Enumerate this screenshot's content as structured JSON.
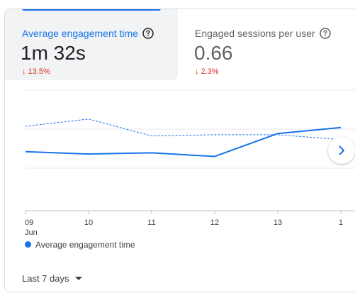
{
  "metrics": [
    {
      "label": "Average engagement time",
      "value": "1m 32s",
      "change": "13.5%",
      "direction": "down",
      "icon": "help-circle-icon",
      "active": true
    },
    {
      "label": "Engaged sessions per user",
      "value": "0.66",
      "change": "2.3%",
      "direction": "down",
      "icon": "help-circle-icon",
      "active": false
    }
  ],
  "chart_data": {
    "type": "line",
    "x_ticks": [
      "09",
      "10",
      "11",
      "12",
      "13",
      "1"
    ],
    "x_sublabel": "Jun",
    "series": [
      {
        "name": "Average engagement time",
        "style": "solid",
        "color": "#1a73e8",
        "values": [
          0.49,
          0.47,
          0.48,
          0.45,
          0.64,
          0.69
        ]
      },
      {
        "style": "dashed",
        "color": "#1a73e8",
        "values": [
          0.7,
          0.76,
          0.62,
          0.63,
          0.63,
          0.59
        ]
      }
    ],
    "ylim": [
      0,
      1
    ],
    "grid": true
  },
  "legend": {
    "label": "Average engagement time"
  },
  "date_range": {
    "label": "Last 7 days"
  },
  "colors": {
    "accent": "#1a73e8",
    "negative": "#d93025",
    "grid": "#e8eaed"
  }
}
